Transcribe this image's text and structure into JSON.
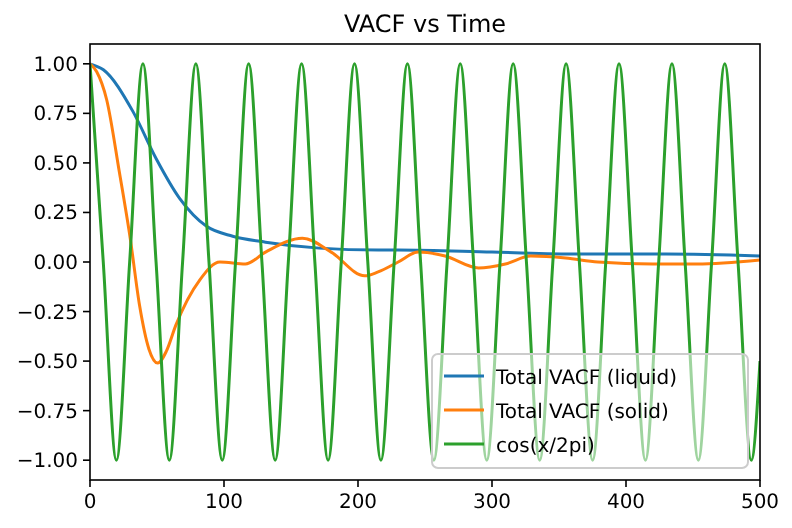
{
  "chart_data": {
    "type": "line",
    "title": "VACF vs Time",
    "xlim": [
      0,
      500
    ],
    "xticks": [
      0,
      100,
      200,
      300,
      400,
      500
    ],
    "ylim": [
      -1.1,
      1.1
    ],
    "yticks": [
      {
        "value": -1,
        "label": "−1.00"
      },
      {
        "value": -0.75,
        "label": "−0.75"
      },
      {
        "value": -0.5,
        "label": "−0.50"
      },
      {
        "value": -0.25,
        "label": "−0.25"
      },
      {
        "value": 0,
        "label": "0.00"
      },
      {
        "value": 0.25,
        "label": "0.25"
      },
      {
        "value": 0.5,
        "label": "0.50"
      },
      {
        "value": 0.75,
        "label": "0.75"
      },
      {
        "value": 1,
        "label": "1.00"
      }
    ],
    "grid": false,
    "legend": "bottom right",
    "series": [
      {
        "name": "Total VACF (liquid)",
        "color": "#1f77b4",
        "x": [
          0,
          10,
          32,
          49.5,
          67,
          87,
          106.5,
          131,
          171,
          215,
          230,
          300,
          364,
          430,
          500
        ],
        "values": [
          1.0,
          0.97,
          0.76,
          0.52,
          0.32,
          0.18,
          0.13,
          0.1,
          0.07,
          0.06,
          0.06,
          0.05,
          0.04,
          0.04,
          0.03
        ]
      },
      {
        "name": "Total VACF (solid)",
        "color": "#ff7f0e",
        "x": [
          0,
          5,
          12.4,
          22,
          30,
          37,
          44,
          50.5,
          57,
          64,
          82,
          97,
          116,
          131,
          158.5,
          180,
          205,
          215,
          230,
          245,
          265,
          290,
          310,
          329,
          355,
          379,
          420,
          453,
          500
        ],
        "values": [
          1.0,
          0.96,
          0.82,
          0.45,
          0.12,
          -0.22,
          -0.44,
          -0.51,
          -0.45,
          -0.32,
          -0.09,
          0.0,
          -0.01,
          0.05,
          0.12,
          0.05,
          -0.07,
          -0.05,
          0.0,
          0.05,
          0.03,
          -0.03,
          -0.01,
          0.03,
          0.02,
          0.0,
          -0.01,
          -0.01,
          0.01
        ]
      },
      {
        "name": "cos(x/2pi)",
        "color": "#2ca02c",
        "x": [
          0,
          9.9,
          19.7,
          29.6,
          39.5,
          49.3,
          59.2,
          69.1,
          79.0,
          88.8,
          98.7,
          108.6,
          118.4,
          128.3,
          138.2,
          148.0,
          157.9,
          167.8,
          177.7,
          187.5,
          197.4,
          207.3,
          217.1,
          227.0,
          236.9,
          246.7,
          256.6,
          266.5,
          276.3,
          286.2,
          296.1,
          306.0,
          315.8,
          325.7,
          335.6,
          345.4,
          355.3,
          365.2,
          375.1,
          384.9,
          394.8,
          404.7,
          414.5,
          424.4,
          434.3,
          444.1,
          454.0,
          463.9,
          473.7,
          483.6,
          493.5,
          500
        ],
        "values": [
          1,
          0,
          -1,
          0,
          1,
          0,
          -1,
          0,
          1,
          0,
          -1,
          0,
          1,
          0,
          -1,
          0,
          1,
          0,
          -1,
          0,
          1,
          0,
          -1,
          0,
          1,
          0,
          -1,
          0,
          1,
          0,
          -1,
          0,
          1,
          0,
          -1,
          0,
          1,
          0,
          -1,
          0,
          1,
          0,
          -1,
          0,
          1,
          0,
          -1,
          0,
          1,
          0,
          -1,
          -0.5
        ]
      }
    ]
  }
}
